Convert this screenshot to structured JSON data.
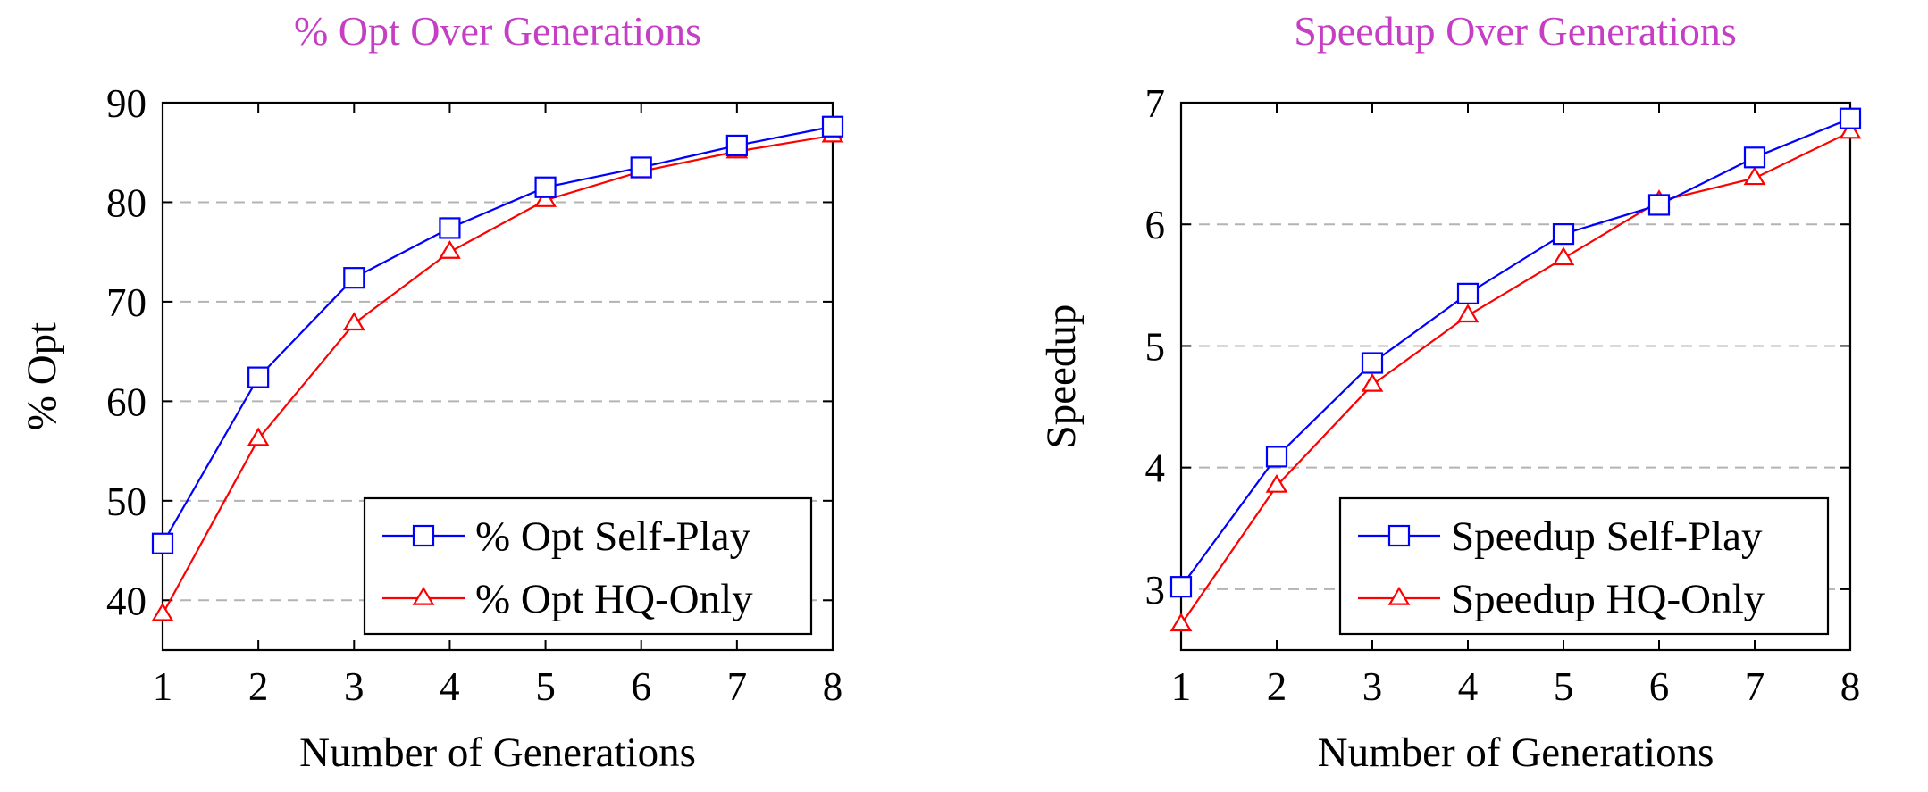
{
  "chart_data": [
    {
      "type": "line",
      "title": "% Opt Over Generations",
      "xlabel": "Number of Generations",
      "ylabel": "% Opt",
      "x": [
        1,
        2,
        3,
        4,
        5,
        6,
        7,
        8
      ],
      "xlim": [
        1,
        8
      ],
      "ylim": [
        35,
        90
      ],
      "yticks": [
        40,
        50,
        60,
        70,
        80,
        90
      ],
      "grid": "horizontal dashed",
      "legend_position": "bottom-right",
      "series": [
        {
          "name": "% Opt Self-Play",
          "color": "#0000ff",
          "marker": "square",
          "values": [
            45.7,
            62.4,
            72.4,
            77.4,
            81.5,
            83.5,
            85.7,
            87.6
          ]
        },
        {
          "name": "% Opt HQ-Only",
          "color": "#ff0000",
          "marker": "triangle",
          "values": [
            38.6,
            56.2,
            67.8,
            75.0,
            80.2,
            83.1,
            85.1,
            86.7
          ]
        }
      ]
    },
    {
      "type": "line",
      "title": "Speedup Over Generations",
      "xlabel": "Number of Generations",
      "ylabel": "Speedup",
      "x": [
        1,
        2,
        3,
        4,
        5,
        6,
        7,
        8
      ],
      "xlim": [
        1,
        8
      ],
      "ylim": [
        2.5,
        7
      ],
      "yticks": [
        3,
        4,
        5,
        6,
        7
      ],
      "grid": "horizontal dashed",
      "legend_position": "bottom-right",
      "series": [
        {
          "name": "Speedup Self-Play",
          "color": "#0000ff",
          "marker": "square",
          "values": [
            3.02,
            4.09,
            4.86,
            5.43,
            5.92,
            6.16,
            6.55,
            6.87
          ]
        },
        {
          "name": "Speedup HQ-Only",
          "color": "#ff0000",
          "marker": "triangle",
          "values": [
            2.71,
            3.85,
            4.68,
            5.25,
            5.72,
            6.19,
            6.38,
            6.76
          ]
        }
      ]
    }
  ]
}
